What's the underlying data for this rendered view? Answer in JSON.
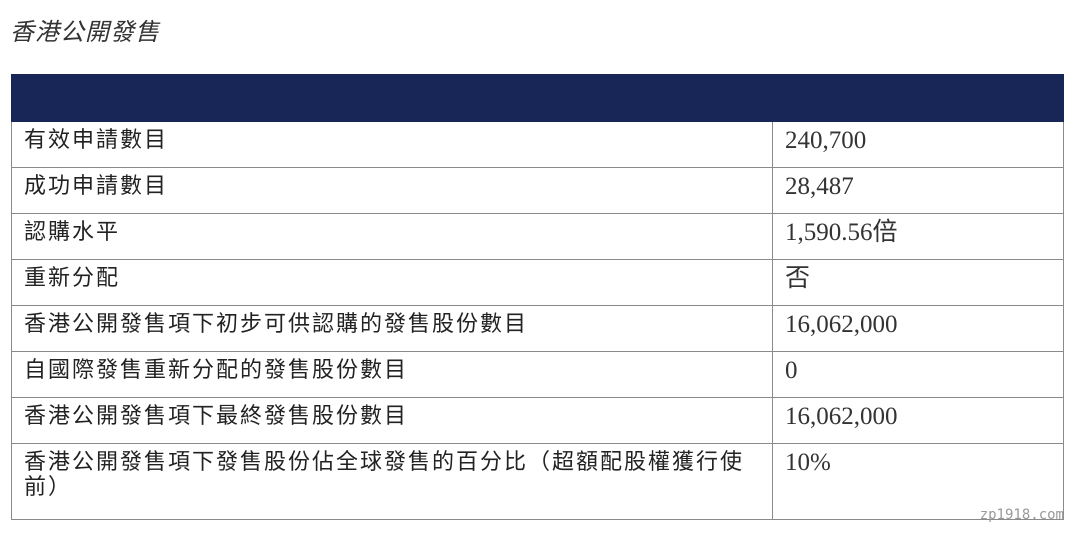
{
  "title": "香港公開發售",
  "rows": [
    {
      "label": "有效申請數目",
      "value": "240,700"
    },
    {
      "label": "成功申請數目",
      "value": "28,487"
    },
    {
      "label": "認購水平",
      "value": "1,590.56倍"
    },
    {
      "label": "重新分配",
      "value": "否"
    },
    {
      "label": "香港公開發售項下初步可供認購的發售股份數目",
      "value": "16,062,000"
    },
    {
      "label": "自國際發售重新分配的發售股份數目",
      "value": "0"
    },
    {
      "label": "香港公開發售項下最終發售股份數目",
      "value": "16,062,000"
    },
    {
      "label": "香港公開發售項下發售股份佔全球發售的百分比（超額配股權獲行使前）",
      "value": "10%"
    }
  ],
  "watermark": "zp1918.com",
  "colors": {
    "header": "#172657"
  }
}
